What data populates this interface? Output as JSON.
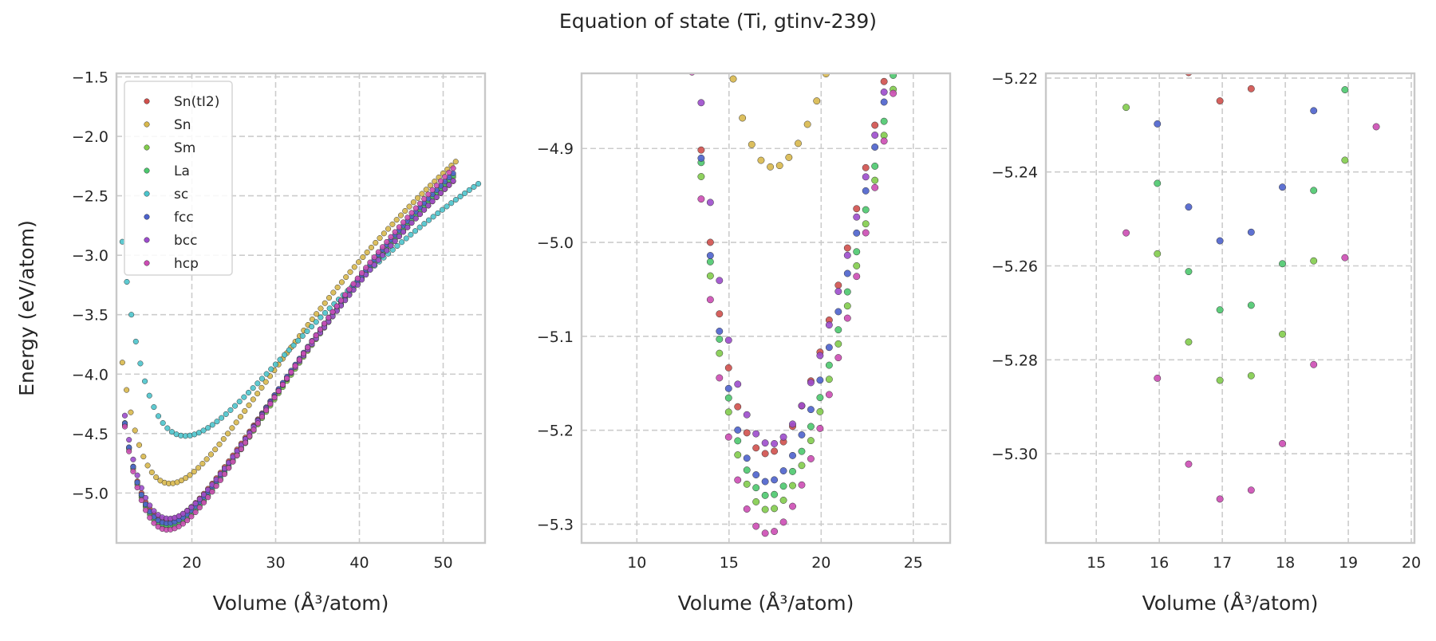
{
  "title": "Equation of state (Ti, gtinv-239)",
  "colors": {
    "grid": "#cccccc",
    "axes_edge": "#c8c8c8",
    "marker_edge": "#333333",
    "Sn(tI2)": "#d0504c",
    "Sn": "#d8b84c",
    "Sm": "#82cc4c",
    "La": "#4cc86e",
    "sc": "#4cc4cc",
    "fcc": "#4c62cc",
    "bcc": "#9c4ccc",
    "hcp": "#cc4cb4"
  },
  "legend": {
    "placement": "upper-left of first panel",
    "entries": [
      "Sn(tI2)",
      "Sn",
      "Sm",
      "La",
      "sc",
      "fcc",
      "bcc",
      "hcp"
    ]
  },
  "chart_data": [
    {
      "type": "scatter",
      "title": "",
      "xlabel": "Volume (Å³/atom)",
      "ylabel": "Energy (eV/atom)",
      "xlim": [
        11,
        55
      ],
      "ylim": [
        -5.42,
        -1.47
      ],
      "xticks": [
        20,
        30,
        40,
        50
      ],
      "xticklabels": [
        "20",
        "30",
        "40",
        "50"
      ],
      "yticks": [
        -5.0,
        -4.5,
        -4.0,
        -3.5,
        -3.0,
        -2.5,
        -2.0,
        -1.5
      ],
      "yticklabels": [
        "−5.0",
        "−4.5",
        "−4.0",
        "−3.5",
        "−3.0",
        "−2.5",
        "−2.0",
        "−1.5"
      ],
      "grid": true,
      "series": [
        {
          "name": "Sn(tI2)",
          "model": {
            "E0": -5.225,
            "V0": 17.05,
            "B": 0.58,
            "Bp": 4.2
          },
          "vrange": [
            12.0,
            51.2
          ],
          "n": 80
        },
        {
          "name": "Sn",
          "model": {
            "E0": -4.92,
            "V0": 17.4,
            "B": 0.55,
            "Bp": 4.2
          },
          "vrange": [
            11.7,
            51.5
          ],
          "n": 80
        },
        {
          "name": "Sm",
          "model": {
            "E0": -5.285,
            "V0": 17.15,
            "B": 0.6,
            "Bp": 4.2
          },
          "vrange": [
            12.0,
            51.2
          ],
          "n": 80
        },
        {
          "name": "La",
          "model": {
            "E0": -5.27,
            "V0": 17.15,
            "B": 0.6,
            "Bp": 4.2
          },
          "vrange": [
            12.0,
            51.2
          ],
          "n": 80
        },
        {
          "name": "sc",
          "model": {
            "E0": -4.52,
            "V0": 19.2,
            "B": 0.45,
            "Bp": 4.5
          },
          "vrange": [
            11.7,
            54.2
          ],
          "n": 80
        },
        {
          "name": "fcc",
          "model": {
            "E0": -5.255,
            "V0": 17.1,
            "B": 0.6,
            "Bp": 4.2
          },
          "vrange": [
            12.0,
            51.2
          ],
          "n": 80
        },
        {
          "name": "bcc",
          "model": {
            "E0": -5.215,
            "V0": 17.25,
            "B": 0.58,
            "Bp": 4.2
          },
          "vrange": [
            12.0,
            51.2
          ],
          "n": 80
        },
        {
          "name": "hcp",
          "model": {
            "E0": -5.31,
            "V0": 17.1,
            "B": 0.62,
            "Bp": 4.2
          },
          "vrange": [
            12.0,
            51.2
          ],
          "n": 80
        }
      ]
    },
    {
      "type": "scatter",
      "title": "",
      "xlabel": "Volume (Å³/atom)",
      "ylabel": "",
      "xlim": [
        7,
        27
      ],
      "ylim": [
        -5.32,
        -4.82
      ],
      "xticks": [
        10,
        15,
        20,
        25
      ],
      "xticklabels": [
        "10",
        "15",
        "20",
        "25"
      ],
      "yticks": [
        -5.3,
        -5.2,
        -5.1,
        -5.0,
        -4.9
      ],
      "yticklabels": [
        "−5.3",
        "−5.2",
        "−5.1",
        "−5.0",
        "−4.9"
      ],
      "grid": true,
      "series": [
        {
          "name": "Sn(tI2)",
          "model": {
            "E0": -5.225,
            "V0": 17.05,
            "B": 0.58,
            "Bp": 4.2
          },
          "vrange": [
            12.0,
            51.2
          ],
          "n": 80
        },
        {
          "name": "Sn",
          "model": {
            "E0": -4.92,
            "V0": 17.4,
            "B": 0.55,
            "Bp": 4.2
          },
          "vrange": [
            11.7,
            51.5
          ],
          "n": 80
        },
        {
          "name": "Sm",
          "model": {
            "E0": -5.285,
            "V0": 17.15,
            "B": 0.6,
            "Bp": 4.2
          },
          "vrange": [
            12.0,
            51.2
          ],
          "n": 80
        },
        {
          "name": "La",
          "model": {
            "E0": -5.27,
            "V0": 17.15,
            "B": 0.6,
            "Bp": 4.2
          },
          "vrange": [
            12.0,
            51.2
          ],
          "n": 80
        },
        {
          "name": "sc",
          "model": {
            "E0": -4.52,
            "V0": 19.2,
            "B": 0.45,
            "Bp": 4.5
          },
          "vrange": [
            11.7,
            54.2
          ],
          "n": 80
        },
        {
          "name": "fcc",
          "model": {
            "E0": -5.255,
            "V0": 17.1,
            "B": 0.6,
            "Bp": 4.2
          },
          "vrange": [
            12.0,
            51.2
          ],
          "n": 80
        },
        {
          "name": "bcc",
          "model": {
            "E0": -5.215,
            "V0": 17.25,
            "B": 0.58,
            "Bp": 4.2
          },
          "vrange": [
            12.0,
            51.2
          ],
          "n": 80
        },
        {
          "name": "hcp",
          "model": {
            "E0": -5.31,
            "V0": 17.1,
            "B": 0.62,
            "Bp": 4.2
          },
          "vrange": [
            12.0,
            51.2
          ],
          "n": 80
        }
      ]
    },
    {
      "type": "scatter",
      "title": "",
      "xlabel": "Volume (Å³/atom)",
      "ylabel": "",
      "xlim": [
        14.2,
        20.05
      ],
      "ylim": [
        -5.319,
        -5.219
      ],
      "xticks": [
        15,
        16,
        17,
        18,
        19,
        20
      ],
      "xticklabels": [
        "15",
        "16",
        "17",
        "18",
        "19",
        "20"
      ],
      "yticks": [
        -5.3,
        -5.28,
        -5.26,
        -5.24,
        -5.22
      ],
      "yticklabels": [
        "−5.30",
        "−5.28",
        "−5.26",
        "−5.24",
        "−5.22"
      ],
      "grid": true,
      "series": [
        {
          "name": "Sn(tI2)",
          "model": {
            "E0": -5.225,
            "V0": 17.05,
            "B": 0.58,
            "Bp": 4.2
          },
          "vrange": [
            12.0,
            51.2
          ],
          "n": 80
        },
        {
          "name": "Sn",
          "model": {
            "E0": -4.92,
            "V0": 17.4,
            "B": 0.55,
            "Bp": 4.2
          },
          "vrange": [
            11.7,
            51.5
          ],
          "n": 80
        },
        {
          "name": "Sm",
          "model": {
            "E0": -5.285,
            "V0": 17.15,
            "B": 0.6,
            "Bp": 4.2
          },
          "vrange": [
            12.0,
            51.2
          ],
          "n": 80
        },
        {
          "name": "La",
          "model": {
            "E0": -5.27,
            "V0": 17.15,
            "B": 0.6,
            "Bp": 4.2
          },
          "vrange": [
            12.0,
            51.2
          ],
          "n": 80
        },
        {
          "name": "sc",
          "model": {
            "E0": -4.52,
            "V0": 19.2,
            "B": 0.45,
            "Bp": 4.5
          },
          "vrange": [
            11.7,
            54.2
          ],
          "n": 80
        },
        {
          "name": "fcc",
          "model": {
            "E0": -5.255,
            "V0": 17.1,
            "B": 0.6,
            "Bp": 4.2
          },
          "vrange": [
            12.0,
            51.2
          ],
          "n": 80
        },
        {
          "name": "bcc",
          "model": {
            "E0": -5.215,
            "V0": 17.25,
            "B": 0.58,
            "Bp": 4.2
          },
          "vrange": [
            12.0,
            51.2
          ],
          "n": 80
        },
        {
          "name": "hcp",
          "model": {
            "E0": -5.31,
            "V0": 17.1,
            "B": 0.62,
            "Bp": 4.2
          },
          "vrange": [
            12.0,
            51.2
          ],
          "n": 80
        }
      ]
    }
  ]
}
